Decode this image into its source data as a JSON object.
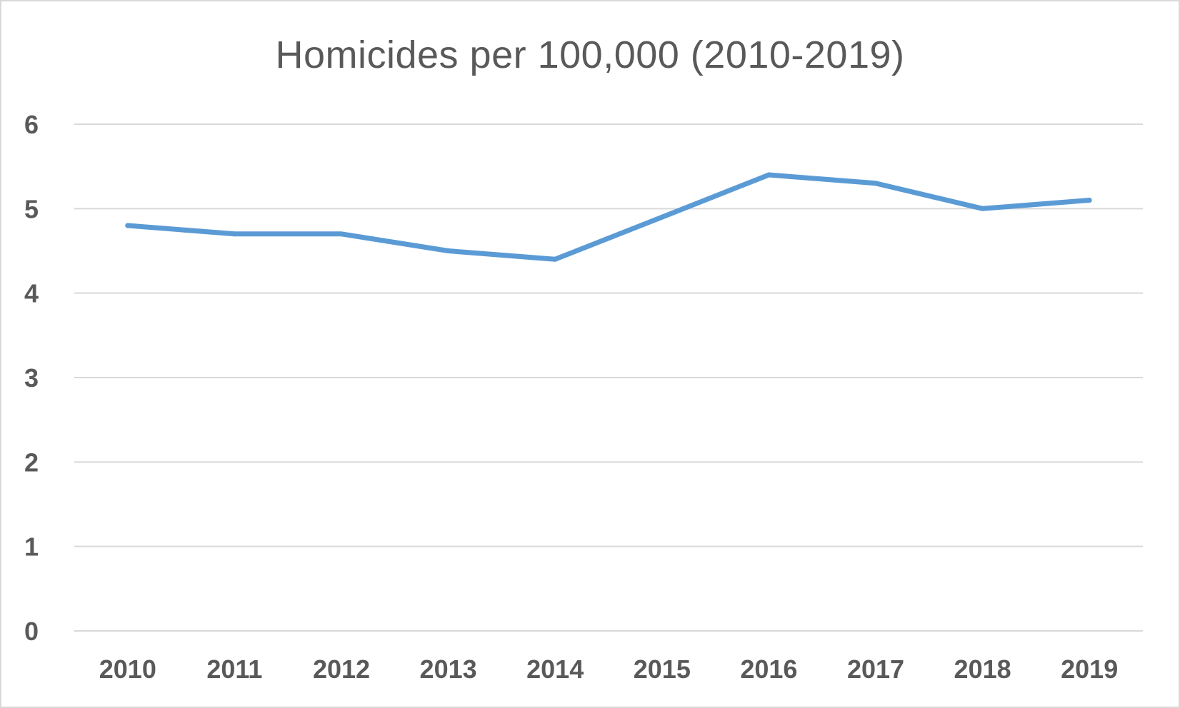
{
  "chart_data": {
    "type": "line",
    "title": "Homicides per 100,000 (2010-2019)",
    "xlabel": "",
    "ylabel": "",
    "categories": [
      "2010",
      "2011",
      "2012",
      "2013",
      "2014",
      "2015",
      "2016",
      "2017",
      "2018",
      "2019"
    ],
    "series": [
      {
        "values": [
          4.8,
          4.7,
          4.7,
          4.5,
          4.4,
          4.9,
          5.4,
          5.3,
          5.0,
          5.1
        ],
        "color": "#5b9bd5"
      }
    ],
    "ylim": [
      0,
      6
    ],
    "yticks": [
      0,
      1,
      2,
      3,
      4,
      5,
      6
    ],
    "grid": true,
    "legend": "none"
  }
}
